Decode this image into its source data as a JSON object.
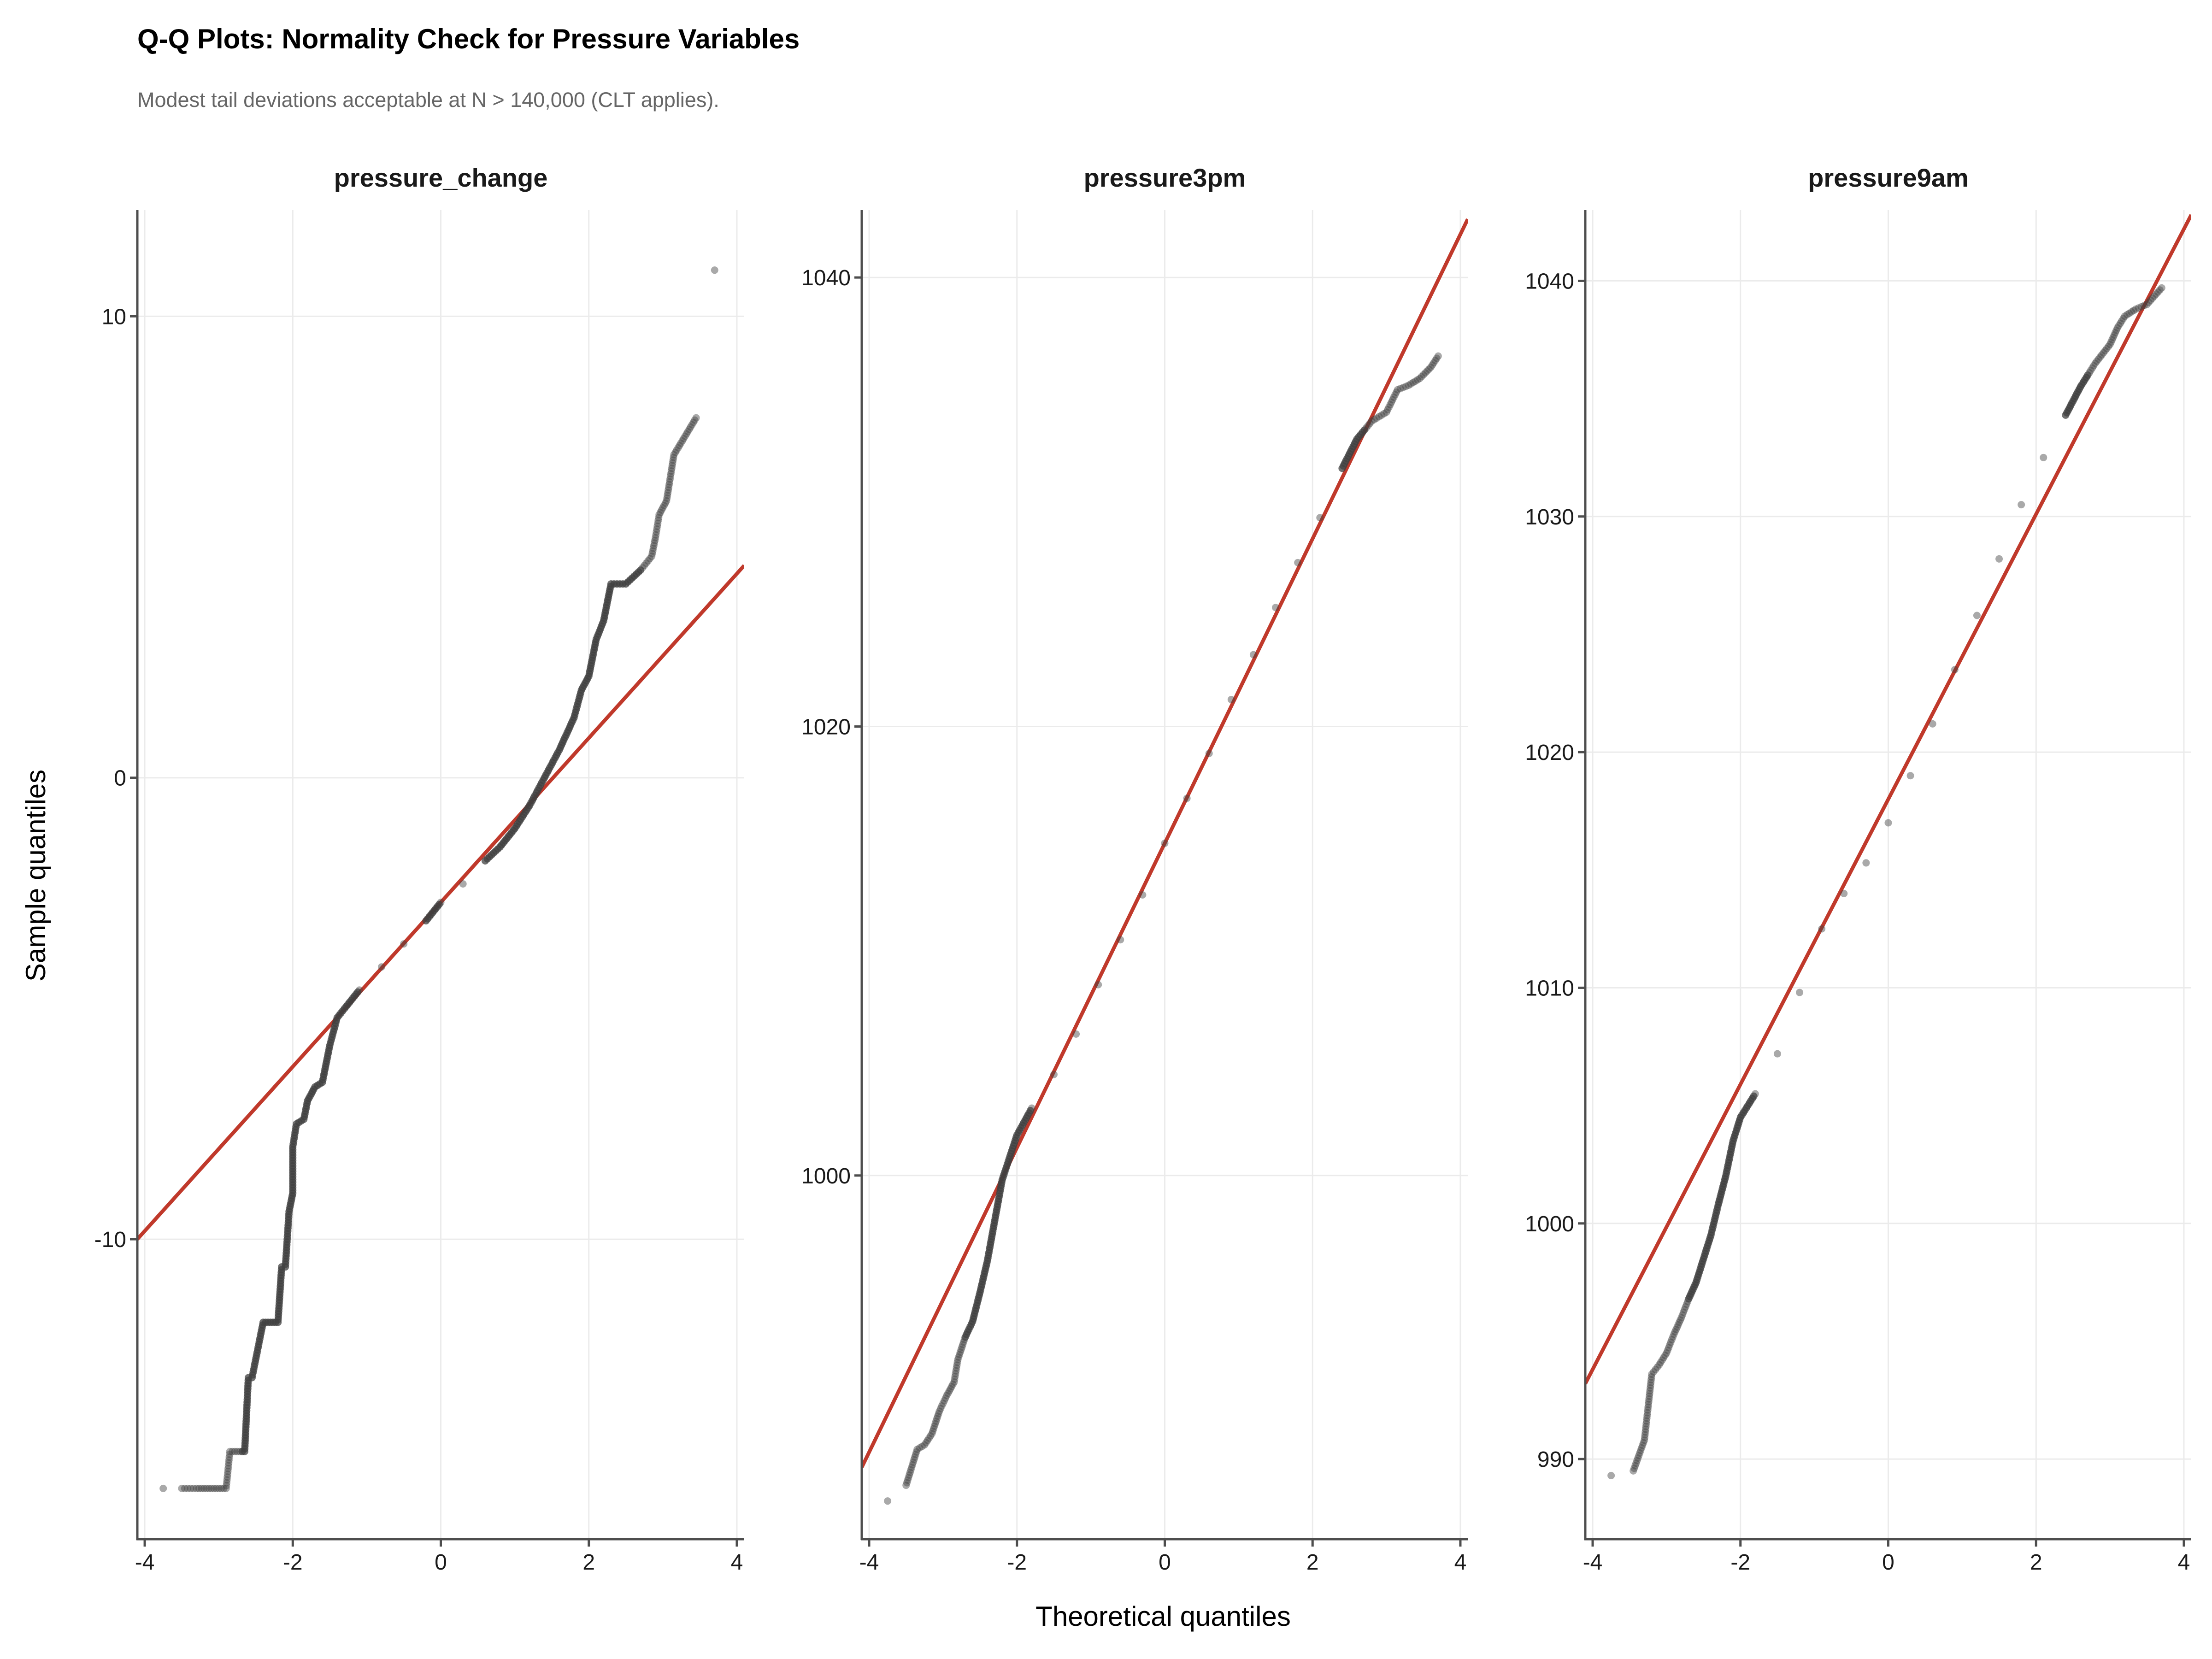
{
  "title": "Q-Q Plots: Normality Check for Pressure Variables",
  "subtitle": "Modest tail deviations acceptable at N > 140,000 (CLT applies).",
  "x_axis_title": "Theoretical quantiles",
  "y_axis_title": "Sample quantiles",
  "colors": {
    "points": "#404040",
    "reference_line": "#c0392b",
    "grid": "#ebebeb",
    "axis": "#4d4d4d"
  },
  "chart_data": [
    {
      "type": "scatter",
      "facet": "pressure_change",
      "xlim": [
        -4.1,
        4.1
      ],
      "ylim": [
        -16.5,
        12.3
      ],
      "x_ticks": [
        -4,
        -2,
        0,
        2,
        4
      ],
      "x_tick_labels": [
        "-4",
        "-2",
        "0",
        "2",
        "4"
      ],
      "y_ticks": [
        -10,
        0,
        10
      ],
      "y_tick_labels": [
        "-10",
        "0",
        "10"
      ],
      "reference_line": {
        "x": [
          -4.1,
          4.1
        ],
        "y": [
          -10.0,
          4.6
        ]
      },
      "qq_points": [
        [
          -3.75,
          -15.4
        ],
        [
          -3.5,
          -15.4
        ],
        [
          -3.3,
          -15.4
        ],
        [
          -3.2,
          -15.4
        ],
        [
          -3.1,
          -15.4
        ],
        [
          -3.0,
          -15.4
        ],
        [
          -2.9,
          -15.4
        ],
        [
          -2.85,
          -14.6
        ],
        [
          -2.75,
          -14.6
        ],
        [
          -2.65,
          -14.6
        ],
        [
          -2.6,
          -13.0
        ],
        [
          -2.55,
          -13.0
        ],
        [
          -2.4,
          -11.8
        ],
        [
          -2.3,
          -11.8
        ],
        [
          -2.2,
          -11.8
        ],
        [
          -2.15,
          -10.6
        ],
        [
          -2.1,
          -10.6
        ],
        [
          -2.05,
          -9.4
        ],
        [
          -2.0,
          -9.0
        ],
        [
          -2.0,
          -8.0
        ],
        [
          -1.95,
          -7.5
        ],
        [
          -1.85,
          -7.4
        ],
        [
          -1.8,
          -7.0
        ],
        [
          -1.7,
          -6.7
        ],
        [
          -1.6,
          -6.6
        ],
        [
          -1.5,
          -5.8
        ],
        [
          -1.4,
          -5.2
        ],
        [
          -1.3,
          -5.0
        ],
        [
          -1.1,
          -4.6
        ],
        [
          -0.8,
          -4.1
        ],
        [
          -0.5,
          -3.6
        ],
        [
          -0.2,
          -3.1
        ],
        [
          0.0,
          -2.7
        ],
        [
          0.3,
          -2.3
        ],
        [
          0.6,
          -1.8
        ],
        [
          0.8,
          -1.5
        ],
        [
          1.0,
          -1.1
        ],
        [
          1.2,
          -0.6
        ],
        [
          1.4,
          0.0
        ],
        [
          1.6,
          0.6
        ],
        [
          1.8,
          1.3
        ],
        [
          1.9,
          1.9
        ],
        [
          2.0,
          2.2
        ],
        [
          2.1,
          3.0
        ],
        [
          2.2,
          3.4
        ],
        [
          2.3,
          4.2
        ],
        [
          2.5,
          4.2
        ],
        [
          2.7,
          4.5
        ],
        [
          2.85,
          4.8
        ],
        [
          2.9,
          5.2
        ],
        [
          2.95,
          5.7
        ],
        [
          3.05,
          6.0
        ],
        [
          3.15,
          7.0
        ],
        [
          3.3,
          7.4
        ],
        [
          3.45,
          7.8
        ],
        [
          3.7,
          11.0
        ]
      ]
    },
    {
      "type": "scatter",
      "facet": "pressure3pm",
      "xlim": [
        -4.1,
        4.1
      ],
      "ylim": [
        983.8,
        1043.0
      ],
      "x_ticks": [
        -4,
        -2,
        0,
        2,
        4
      ],
      "x_tick_labels": [
        "-4",
        "-2",
        "0",
        "2",
        "4"
      ],
      "y_ticks": [
        1000,
        1020,
        1040
      ],
      "y_tick_labels": [
        "1000",
        "1020",
        "1040"
      ],
      "reference_line": {
        "x": [
          -4.1,
          4.1
        ],
        "y": [
          987.0,
          1042.6
        ]
      },
      "qq_points": [
        [
          -3.75,
          985.5
        ],
        [
          -3.5,
          986.2
        ],
        [
          -3.35,
          987.8
        ],
        [
          -3.25,
          988.0
        ],
        [
          -3.15,
          988.5
        ],
        [
          -3.05,
          989.5
        ],
        [
          -2.95,
          990.2
        ],
        [
          -2.85,
          990.8
        ],
        [
          -2.8,
          991.8
        ],
        [
          -2.7,
          992.8
        ],
        [
          -2.6,
          993.5
        ],
        [
          -2.5,
          994.8
        ],
        [
          -2.4,
          996.2
        ],
        [
          -2.3,
          998.0
        ],
        [
          -2.2,
          999.8
        ],
        [
          -2.0,
          1001.8
        ],
        [
          -1.8,
          1003.0
        ],
        [
          -1.5,
          1004.5
        ],
        [
          -1.2,
          1006.3
        ],
        [
          -0.9,
          1008.5
        ],
        [
          -0.6,
          1010.5
        ],
        [
          -0.3,
          1012.5
        ],
        [
          0.0,
          1014.8
        ],
        [
          0.3,
          1016.8
        ],
        [
          0.6,
          1018.8
        ],
        [
          0.9,
          1021.2
        ],
        [
          1.2,
          1023.2
        ],
        [
          1.5,
          1025.3
        ],
        [
          1.8,
          1027.3
        ],
        [
          2.1,
          1029.3
        ],
        [
          2.4,
          1031.5
        ],
        [
          2.6,
          1032.8
        ],
        [
          2.8,
          1033.6
        ],
        [
          3.0,
          1034.0
        ],
        [
          3.15,
          1035.0
        ],
        [
          3.3,
          1035.2
        ],
        [
          3.45,
          1035.5
        ],
        [
          3.6,
          1036.0
        ],
        [
          3.7,
          1036.5
        ]
      ]
    },
    {
      "type": "scatter",
      "facet": "pressure9am",
      "xlim": [
        -4.1,
        4.1
      ],
      "ylim": [
        986.6,
        1043.0
      ],
      "x_ticks": [
        -4,
        -2,
        0,
        2,
        4
      ],
      "x_tick_labels": [
        "-4",
        "-2",
        "0",
        "2",
        "4"
      ],
      "y_ticks": [
        990,
        1000,
        1010,
        1020,
        1030,
        1040
      ],
      "y_tick_labels": [
        "990",
        "1000",
        "1010",
        "1020",
        "1030",
        "1040"
      ],
      "reference_line": {
        "x": [
          -4.1,
          4.1
        ],
        "y": [
          993.2,
          1042.8
        ]
      },
      "qq_points": [
        [
          -3.75,
          989.3
        ],
        [
          -3.45,
          989.5
        ],
        [
          -3.3,
          990.8
        ],
        [
          -3.2,
          993.6
        ],
        [
          -3.1,
          994.0
        ],
        [
          -3.0,
          994.5
        ],
        [
          -2.9,
          995.3
        ],
        [
          -2.8,
          996.0
        ],
        [
          -2.7,
          996.8
        ],
        [
          -2.6,
          997.5
        ],
        [
          -2.5,
          998.5
        ],
        [
          -2.4,
          999.5
        ],
        [
          -2.3,
          1000.8
        ],
        [
          -2.2,
          1002.0
        ],
        [
          -2.1,
          1003.5
        ],
        [
          -2.0,
          1004.5
        ],
        [
          -1.8,
          1005.5
        ],
        [
          -1.5,
          1007.2
        ],
        [
          -1.2,
          1009.8
        ],
        [
          -0.9,
          1012.5
        ],
        [
          -0.6,
          1014.0
        ],
        [
          -0.3,
          1015.3
        ],
        [
          0.0,
          1017.0
        ],
        [
          0.3,
          1019.0
        ],
        [
          0.6,
          1021.2
        ],
        [
          0.9,
          1023.5
        ],
        [
          1.2,
          1025.8
        ],
        [
          1.5,
          1028.2
        ],
        [
          1.8,
          1030.5
        ],
        [
          2.1,
          1032.5
        ],
        [
          2.4,
          1034.3
        ],
        [
          2.6,
          1035.5
        ],
        [
          2.8,
          1036.5
        ],
        [
          3.0,
          1037.3
        ],
        [
          3.1,
          1038.0
        ],
        [
          3.2,
          1038.5
        ],
        [
          3.35,
          1038.8
        ],
        [
          3.5,
          1039.0
        ],
        [
          3.7,
          1039.7
        ]
      ]
    }
  ]
}
